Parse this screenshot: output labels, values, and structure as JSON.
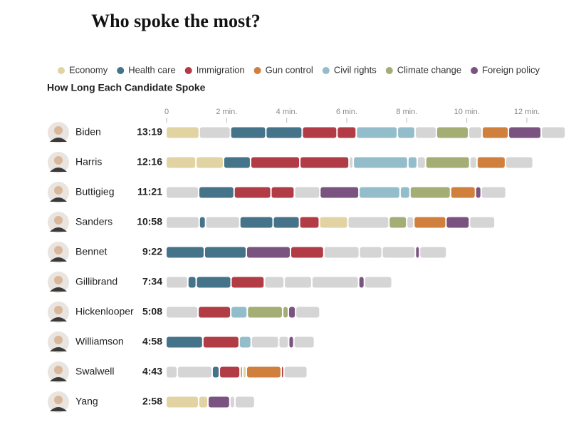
{
  "chart_data": {
    "type": "segmented-bar",
    "title": "Who spoke the most?",
    "subtitle": "How Long Each Candidate Spoke",
    "topics": [
      {
        "name": "Economy",
        "color": "#e2d3a3"
      },
      {
        "name": "Health care",
        "color": "#44738a"
      },
      {
        "name": "Immigration",
        "color": "#b23c46"
      },
      {
        "name": "Gun control",
        "color": "#d17f3c"
      },
      {
        "name": "Civil rights",
        "color": "#94bdcc"
      },
      {
        "name": "Climate change",
        "color": "#a4ae74"
      },
      {
        "name": "Foreign policy",
        "color": "#7b5381"
      }
    ],
    "other_color": "#d5d5d5",
    "xlim": [
      0,
      13.4
    ],
    "xticks": [
      0,
      {
        "value": 2,
        "label": "2 min."
      },
      {
        "value": 4,
        "label": "4 min."
      },
      {
        "value": 6,
        "label": "6 min."
      },
      {
        "value": 8,
        "label": "8 min."
      },
      {
        "value": 10,
        "label": "10 min."
      },
      {
        "value": 12,
        "label": "12 min."
      }
    ],
    "rows": [
      {
        "name": "Biden",
        "duration": "13:19",
        "segments": [
          {
            "topic": "Economy",
            "minutes": 1.11
          },
          {
            "topic": null,
            "minutes": 1.04
          },
          {
            "topic": "Health care",
            "minutes": 1.18
          },
          {
            "topic": "Health care",
            "minutes": 1.21
          },
          {
            "topic": "Immigration",
            "minutes": 1.16
          },
          {
            "topic": "Immigration",
            "minutes": 0.64
          },
          {
            "topic": "Civil rights",
            "minutes": 1.37
          },
          {
            "topic": "Civil rights",
            "minutes": 0.59
          },
          {
            "topic": null,
            "minutes": 0.71
          },
          {
            "topic": "Climate change",
            "minutes": 1.07
          },
          {
            "topic": null,
            "minutes": 0.45
          },
          {
            "topic": "Gun control",
            "minutes": 0.88
          },
          {
            "topic": "Foreign policy",
            "minutes": 1.09
          },
          {
            "topic": null,
            "minutes": 0.81
          }
        ]
      },
      {
        "name": "Harris",
        "duration": "12:16",
        "segments": [
          {
            "topic": "Economy",
            "minutes": 1.0
          },
          {
            "topic": "Economy",
            "minutes": 0.92
          },
          {
            "topic": "Health care",
            "minutes": 0.9
          },
          {
            "topic": "Immigration",
            "minutes": 1.64
          },
          {
            "topic": "Immigration",
            "minutes": 1.64
          },
          {
            "topic": null,
            "minutes": 0.14
          },
          {
            "topic": "Civil rights",
            "minutes": 1.82
          },
          {
            "topic": "Civil rights",
            "minutes": 0.31
          },
          {
            "topic": null,
            "minutes": 0.28
          },
          {
            "topic": "Climate change",
            "minutes": 1.47
          },
          {
            "topic": null,
            "minutes": 0.24
          },
          {
            "topic": "Gun control",
            "minutes": 0.95
          },
          {
            "topic": null,
            "minutes": 0.92
          }
        ]
      },
      {
        "name": "Buttigieg",
        "duration": "11:21",
        "segments": [
          {
            "topic": null,
            "minutes": 1.09
          },
          {
            "topic": "Health care",
            "minutes": 1.18
          },
          {
            "topic": "Immigration",
            "minutes": 1.23
          },
          {
            "topic": "Immigration",
            "minutes": 0.78
          },
          {
            "topic": null,
            "minutes": 0.85
          },
          {
            "topic": "Foreign policy",
            "minutes": 1.3
          },
          {
            "topic": "Civil rights",
            "minutes": 1.37
          },
          {
            "topic": "Civil rights",
            "minutes": 0.33
          },
          {
            "topic": "Climate change",
            "minutes": 1.35
          },
          {
            "topic": "Gun control",
            "minutes": 0.83
          },
          {
            "topic": "Foreign policy",
            "minutes": 0.19
          },
          {
            "topic": null,
            "minutes": 0.83
          }
        ]
      },
      {
        "name": "Sanders",
        "duration": "10:58",
        "segments": [
          {
            "topic": null,
            "minutes": 1.11
          },
          {
            "topic": "Health care",
            "minutes": 0.21
          },
          {
            "topic": null,
            "minutes": 1.14
          },
          {
            "topic": "Health care",
            "minutes": 1.11
          },
          {
            "topic": "Health care",
            "minutes": 0.88
          },
          {
            "topic": "Immigration",
            "minutes": 0.66
          },
          {
            "topic": "Economy",
            "minutes": 0.95
          },
          {
            "topic": null,
            "minutes": 1.37
          },
          {
            "topic": "Climate change",
            "minutes": 0.59
          },
          {
            "topic": null,
            "minutes": 0.24
          },
          {
            "topic": "Gun control",
            "minutes": 1.07
          },
          {
            "topic": "Foreign policy",
            "minutes": 0.78
          },
          {
            "topic": null,
            "minutes": 0.85
          }
        ]
      },
      {
        "name": "Bennet",
        "duration": "9:22",
        "segments": [
          {
            "topic": "Health care",
            "minutes": 1.28
          },
          {
            "topic": "Health care",
            "minutes": 1.4
          },
          {
            "topic": "Foreign policy",
            "minutes": 1.47
          },
          {
            "topic": "Immigration",
            "minutes": 1.11
          },
          {
            "topic": null,
            "minutes": 1.18
          },
          {
            "topic": null,
            "minutes": 0.76
          },
          {
            "topic": null,
            "minutes": 1.11
          },
          {
            "topic": "Foreign policy",
            "minutes": 0.14
          },
          {
            "topic": null,
            "minutes": 0.9
          }
        ]
      },
      {
        "name": "Gillibrand",
        "duration": "7:34",
        "segments": [
          {
            "topic": null,
            "minutes": 0.73
          },
          {
            "topic": "Health care",
            "minutes": 0.28
          },
          {
            "topic": "Health care",
            "minutes": 1.16
          },
          {
            "topic": "Immigration",
            "minutes": 1.11
          },
          {
            "topic": null,
            "minutes": 0.66
          },
          {
            "topic": null,
            "minutes": 0.92
          },
          {
            "topic": null,
            "minutes": 1.56
          },
          {
            "topic": "Foreign policy",
            "minutes": 0.19
          },
          {
            "topic": null,
            "minutes": 0.92
          }
        ]
      },
      {
        "name": "Hickenlooper",
        "duration": "5:08",
        "segments": [
          {
            "topic": null,
            "minutes": 1.07
          },
          {
            "topic": "Immigration",
            "minutes": 1.09
          },
          {
            "topic": "Civil rights",
            "minutes": 0.55
          },
          {
            "topic": "Climate change",
            "minutes": 1.18
          },
          {
            "topic": "Climate change",
            "minutes": 0.19
          },
          {
            "topic": "Foreign policy",
            "minutes": 0.24
          },
          {
            "topic": null,
            "minutes": 0.81
          }
        ]
      },
      {
        "name": "Williamson",
        "duration": "4:58",
        "segments": [
          {
            "topic": "Health care",
            "minutes": 1.23
          },
          {
            "topic": "Immigration",
            "minutes": 1.21
          },
          {
            "topic": "Civil rights",
            "minutes": 0.4
          },
          {
            "topic": null,
            "minutes": 0.92
          },
          {
            "topic": null,
            "minutes": 0.33
          },
          {
            "topic": "Foreign policy",
            "minutes": 0.17
          },
          {
            "topic": null,
            "minutes": 0.69
          }
        ]
      },
      {
        "name": "Swalwell",
        "duration": "4:43",
        "segments": [
          {
            "topic": null,
            "minutes": 0.38
          },
          {
            "topic": null,
            "minutes": 1.16
          },
          {
            "topic": "Health care",
            "minutes": 0.24
          },
          {
            "topic": "Immigration",
            "minutes": 0.69
          },
          {
            "topic": "Climate change",
            "minutes": 0.09
          },
          {
            "topic": "Economy",
            "minutes": 0.12
          },
          {
            "topic": "Gun control",
            "minutes": 1.16
          },
          {
            "topic": "Immigration",
            "minutes": 0.09
          },
          {
            "topic": null,
            "minutes": 0.78
          }
        ]
      },
      {
        "name": "Yang",
        "duration": "2:58",
        "segments": [
          {
            "topic": "Economy",
            "minutes": 1.09
          },
          {
            "topic": "Economy",
            "minutes": 0.31
          },
          {
            "topic": "Foreign policy",
            "minutes": 0.73
          },
          {
            "topic": null,
            "minutes": 0.17
          },
          {
            "topic": null,
            "minutes": 0.66
          }
        ]
      }
    ]
  }
}
